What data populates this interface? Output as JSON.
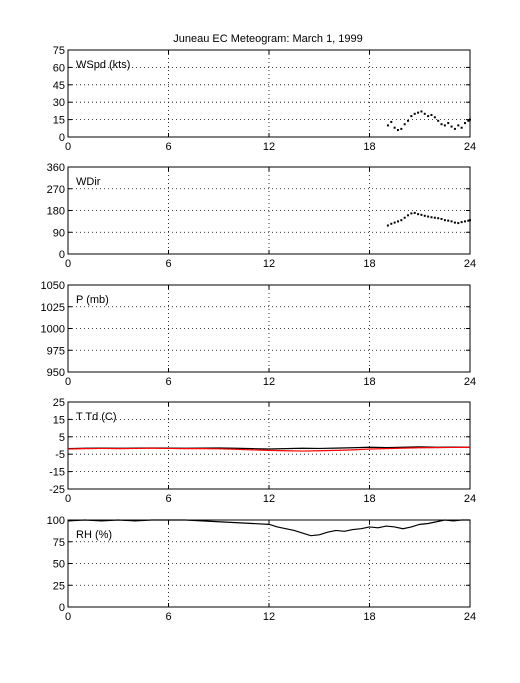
{
  "title": "Juneau EC Meteogram:     March  1, 1999",
  "chart_data": [
    {
      "type": "scatter",
      "ylabel": "WSpd (kts)",
      "xlim": [
        0,
        24
      ],
      "xticks": [
        0,
        6,
        12,
        18,
        24
      ],
      "ylim": [
        0,
        75
      ],
      "yticks": [
        0,
        15,
        30,
        45,
        60,
        75
      ],
      "grid": true,
      "series": [
        {
          "color": "#000000",
          "x": [
            19.1,
            19.3,
            19.5,
            19.7,
            19.9,
            20.1,
            20.3,
            20.5,
            20.7,
            20.9,
            21.1,
            21.3,
            21.5,
            21.7,
            21.9,
            22.1,
            22.3,
            22.5,
            22.7,
            22.9,
            23.1,
            23.3,
            23.5,
            23.7,
            23.9,
            24.0
          ],
          "y": [
            10,
            13,
            8,
            6,
            7,
            11,
            14,
            18,
            20,
            21,
            22,
            20,
            18,
            19,
            17,
            14,
            11,
            10,
            12,
            9,
            7,
            10,
            8,
            12,
            14,
            15
          ]
        }
      ]
    },
    {
      "type": "scatter",
      "ylabel": "WDir",
      "xlim": [
        0,
        24
      ],
      "xticks": [
        0,
        6,
        12,
        18,
        24
      ],
      "ylim": [
        0,
        360
      ],
      "yticks": [
        0,
        90,
        180,
        270,
        360
      ],
      "grid": true,
      "series": [
        {
          "color": "#000000",
          "x": [
            19.1,
            19.3,
            19.5,
            19.7,
            19.9,
            20.1,
            20.3,
            20.5,
            20.7,
            20.9,
            21.1,
            21.3,
            21.5,
            21.7,
            21.9,
            22.1,
            22.3,
            22.5,
            22.7,
            22.9,
            23.1,
            23.3,
            23.5,
            23.7,
            23.9,
            24.0
          ],
          "y": [
            118,
            125,
            130,
            135,
            140,
            150,
            160,
            168,
            170,
            165,
            162,
            158,
            155,
            152,
            150,
            148,
            145,
            140,
            138,
            135,
            130,
            128,
            132,
            135,
            138,
            140
          ]
        }
      ]
    },
    {
      "type": "line",
      "ylabel": "P (mb)",
      "xlim": [
        0,
        24
      ],
      "xticks": [
        0,
        6,
        12,
        18,
        24
      ],
      "ylim": [
        950,
        1050
      ],
      "yticks": [
        950,
        975,
        1000,
        1025,
        1050
      ],
      "grid": true,
      "series": []
    },
    {
      "type": "line",
      "ylabel": "T Td (C)",
      "xlim": [
        0,
        24
      ],
      "xticks": [
        0,
        6,
        12,
        18,
        24
      ],
      "ylim": [
        -25,
        25
      ],
      "yticks": [
        -25,
        -15,
        -5,
        5,
        15,
        25
      ],
      "grid": true,
      "series": [
        {
          "color": "#000000",
          "x": [
            0,
            1,
            2,
            3,
            4,
            5,
            6,
            7,
            8,
            9,
            10,
            11,
            12,
            13,
            14,
            15,
            16,
            17,
            18,
            19,
            20,
            21,
            22,
            23,
            24
          ],
          "y": [
            -1.8,
            -1.6,
            -1.5,
            -1.6,
            -1.5,
            -1.4,
            -1.5,
            -1.6,
            -1.5,
            -1.4,
            -1.6,
            -1.8,
            -2.0,
            -1.8,
            -1.6,
            -1.7,
            -1.5,
            -1.3,
            -1.0,
            -1.2,
            -1.0,
            -0.8,
            -1.0,
            -0.9,
            -1.0
          ]
        },
        {
          "color": "#ff0000",
          "x": [
            0,
            1,
            2,
            3,
            4,
            5,
            6,
            7,
            8,
            9,
            10,
            11,
            12,
            13,
            14,
            15,
            16,
            17,
            18,
            19,
            20,
            21,
            22,
            23,
            24
          ],
          "y": [
            -2.0,
            -1.8,
            -1.7,
            -1.8,
            -1.7,
            -1.6,
            -1.7,
            -1.8,
            -1.8,
            -1.9,
            -2.2,
            -2.5,
            -2.8,
            -3.0,
            -3.2,
            -3.0,
            -2.8,
            -2.5,
            -2.0,
            -1.8,
            -1.5,
            -1.3,
            -1.2,
            -1.1,
            -1.0
          ]
        }
      ]
    },
    {
      "type": "line",
      "ylabel": "RH (%)",
      "xlim": [
        0,
        24
      ],
      "xticks": [
        0,
        6,
        12,
        18,
        24
      ],
      "ylim": [
        0,
        100
      ],
      "yticks": [
        0,
        25,
        50,
        75,
        100
      ],
      "grid": true,
      "series": [
        {
          "color": "#000000",
          "x": [
            0,
            1,
            2,
            3,
            4,
            5,
            6,
            7,
            8,
            9,
            10,
            11,
            12,
            12.5,
            13,
            13.5,
            14,
            14.5,
            15,
            15.5,
            16,
            16.5,
            17,
            17.5,
            18,
            18.5,
            19,
            19.5,
            20,
            20.5,
            21,
            21.5,
            22,
            22.5,
            23,
            23.5,
            24
          ],
          "y": [
            99,
            100,
            99,
            100,
            99,
            100,
            100,
            100,
            99,
            98,
            97,
            96,
            95,
            92,
            90,
            88,
            85,
            82,
            83,
            86,
            88,
            87,
            89,
            90,
            92,
            91,
            93,
            92,
            90,
            92,
            95,
            96,
            98,
            100,
            99,
            100,
            100
          ]
        }
      ]
    }
  ]
}
